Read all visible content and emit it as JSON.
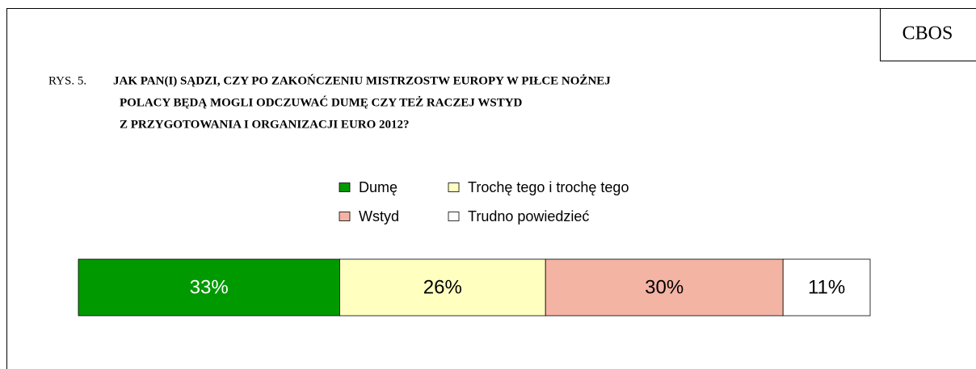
{
  "chart_data": {
    "type": "bar",
    "stacked": true,
    "orientation": "horizontal",
    "source": "CBOS",
    "figure_label": "RYS. 5.",
    "title_lines": [
      "JAK PAN(I) SĄDZI, CZY PO ZAKOŃCZENIU MISTRZOSTW EUROPY W PIŁCE NOŻNEJ",
      "POLACY BĘDĄ MOGLI ODCZUWAĆ DUMĘ CZY TEŻ RACZEJ WSTYD",
      "Z PRZYGOTOWANIA I ORGANIZACJI EURO 2012?"
    ],
    "xlim": [
      0,
      100
    ],
    "series": [
      {
        "name": "Dumę",
        "color": "#009900",
        "values": [
          33
        ],
        "value_labels": [
          "33%"
        ]
      },
      {
        "name": "Trochę tego i trochę tego",
        "color": "#ffffc0",
        "values": [
          26
        ],
        "value_labels": [
          "26%"
        ]
      },
      {
        "name": "Wstyd",
        "color": "#f4b4a4",
        "values": [
          30
        ],
        "value_labels": [
          "30%"
        ]
      },
      {
        "name": "Trudno powiedzieć",
        "color": "#ffffff",
        "values": [
          11
        ],
        "value_labels": [
          "11%"
        ]
      }
    ]
  }
}
